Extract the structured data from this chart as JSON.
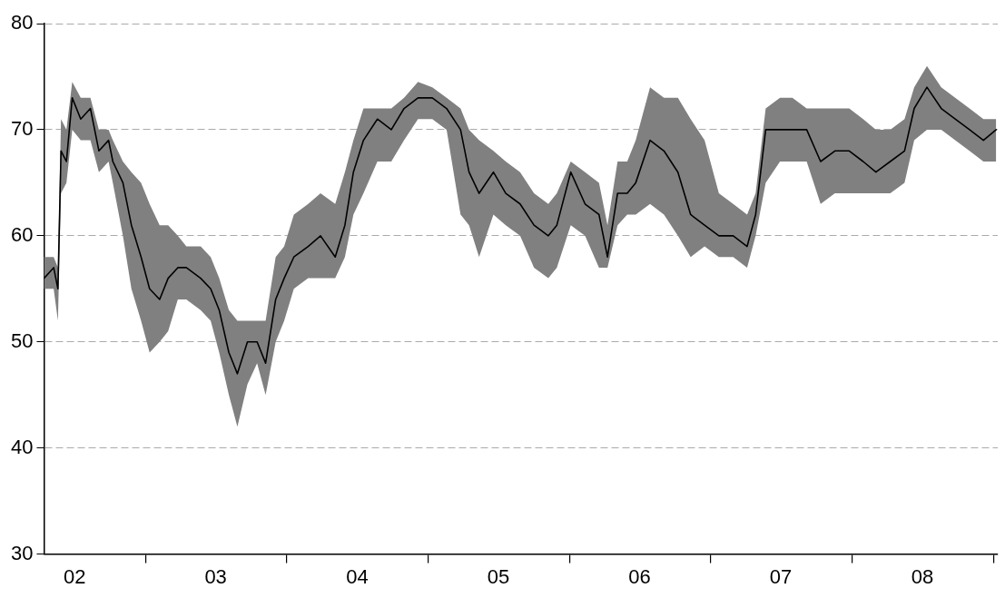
{
  "chart_data": {
    "type": "line",
    "x": [
      "2002-04-13",
      "2002-05-08",
      "2002-05-19",
      "2002-05-27",
      "2002-06-10",
      "2002-06-25",
      "2002-07-17",
      "2002-08-11",
      "2002-09-02",
      "2002-09-27",
      "2002-10-08",
      "2002-11-03",
      "2002-11-25",
      "2002-12-20",
      "2003-01-11",
      "2003-02-06",
      "2003-02-28",
      "2003-03-25",
      "2003-04-16",
      "2003-05-23",
      "2003-06-18",
      "2003-07-10",
      "2003-08-04",
      "2003-08-26",
      "2003-09-21",
      "2003-10-16",
      "2003-11-07",
      "2003-12-03",
      "2003-12-25",
      "2004-01-19",
      "2004-02-25",
      "2004-03-28",
      "2004-05-05",
      "2004-05-30",
      "2004-06-21",
      "2004-07-17",
      "2004-08-22",
      "2004-09-27",
      "2004-10-30",
      "2004-12-05",
      "2005-01-11",
      "2005-02-17",
      "2005-03-25",
      "2005-04-16",
      "2005-05-12",
      "2005-06-18",
      "2005-07-20",
      "2005-08-26",
      "2005-10-01",
      "2005-11-07",
      "2005-11-29",
      "2006-01-04",
      "2006-02-10",
      "2006-03-18",
      "2006-04-09",
      "2006-05-05",
      "2006-05-30",
      "2006-06-21",
      "2006-07-28",
      "2006-09-02",
      "2006-10-08",
      "2006-11-10",
      "2006-12-16",
      "2007-01-22",
      "2007-02-28",
      "2007-04-05",
      "2007-04-27",
      "2007-05-23",
      "2007-06-29",
      "2007-07-31",
      "2007-09-06",
      "2007-10-12",
      "2007-11-18",
      "2007-12-25",
      "2008-01-30",
      "2008-03-03",
      "2008-04-09",
      "2008-05-16",
      "2008-06-10",
      "2008-07-13",
      "2008-08-19",
      "2008-09-24",
      "2008-10-31",
      "2008-12-06",
      "2009-01-08"
    ],
    "series": [
      {
        "color": "#000000",
        "values": [
          56,
          57,
          55,
          68,
          67,
          73,
          71,
          72,
          68,
          69,
          67,
          65,
          61,
          58,
          55,
          54,
          56,
          57,
          57,
          56,
          55,
          53,
          49,
          47,
          50,
          50,
          48,
          54,
          56,
          58,
          59,
          60,
          58,
          61,
          66,
          69,
          71,
          70,
          72,
          73,
          73,
          72,
          70,
          66,
          64,
          66,
          64,
          63,
          61,
          60,
          61,
          66,
          63,
          62,
          58,
          64,
          64,
          65,
          69,
          68,
          66,
          62,
          61,
          60,
          60,
          59,
          62,
          70,
          70,
          70,
          70,
          67,
          68,
          68,
          67,
          66,
          67,
          68,
          72,
          74,
          72,
          71,
          70,
          69,
          70
        ],
        "lower": [
          55,
          55,
          52,
          64,
          65,
          70,
          69,
          69,
          66,
          67,
          65,
          60,
          55,
          52,
          49,
          50,
          51,
          54,
          54,
          53,
          52,
          49,
          45,
          42,
          46,
          48,
          45,
          50,
          52,
          55,
          56,
          56,
          56,
          58,
          62,
          64,
          67,
          67,
          69,
          71,
          71,
          70,
          62,
          61,
          58,
          62,
          61,
          60,
          57,
          56,
          57,
          61,
          60,
          57,
          57,
          61,
          62,
          62,
          63,
          62,
          60,
          58,
          59,
          58,
          58,
          57,
          60,
          65,
          67,
          67,
          67,
          63,
          64,
          64,
          64,
          64,
          64,
          65,
          69,
          70,
          70,
          69,
          68,
          67,
          67
        ],
        "upper": [
          58,
          58,
          57,
          71,
          70,
          74.5,
          73,
          73,
          70,
          70,
          69,
          67,
          66,
          65,
          63,
          61,
          61,
          60,
          59,
          59,
          58,
          56,
          53,
          52,
          52,
          52,
          52,
          58,
          59,
          62,
          63,
          64,
          63,
          66,
          69,
          72,
          72,
          72,
          73,
          74.5,
          74,
          73,
          72,
          70,
          69,
          68,
          67,
          66,
          64,
          63,
          64,
          67,
          66,
          65,
          61,
          67,
          67,
          69,
          74,
          73,
          73,
          71,
          69,
          64,
          63,
          62,
          64,
          72,
          73,
          73,
          72,
          72,
          72,
          72,
          71,
          70,
          70,
          71,
          74,
          76,
          74,
          73,
          72,
          71,
          71
        ]
      }
    ],
    "xlim": [
      "2002-04-13",
      "2009-01-12"
    ],
    "xticks": [
      {
        "value": "2002-07",
        "label": "02"
      },
      {
        "value": "2003-01",
        "label": null
      },
      {
        "value": "2003-07",
        "label": "03"
      },
      {
        "value": "2004-01",
        "label": null
      },
      {
        "value": "2004-07",
        "label": "04"
      },
      {
        "value": "2005-01",
        "label": null
      },
      {
        "value": "2005-07",
        "label": "05"
      },
      {
        "value": "2006-01",
        "label": null
      },
      {
        "value": "2006-07",
        "label": "06"
      },
      {
        "value": "2007-01",
        "label": null
      },
      {
        "value": "2007-07",
        "label": "07"
      },
      {
        "value": "2008-01",
        "label": null
      },
      {
        "value": "2008-07",
        "label": "08"
      },
      {
        "value": "2009-01",
        "label": null
      }
    ],
    "ylim": [
      30,
      80
    ],
    "yticks": [
      30,
      40,
      50,
      60,
      70,
      80
    ],
    "grid": "y",
    "legend": false,
    "marker": "none",
    "line_style": "solid"
  }
}
